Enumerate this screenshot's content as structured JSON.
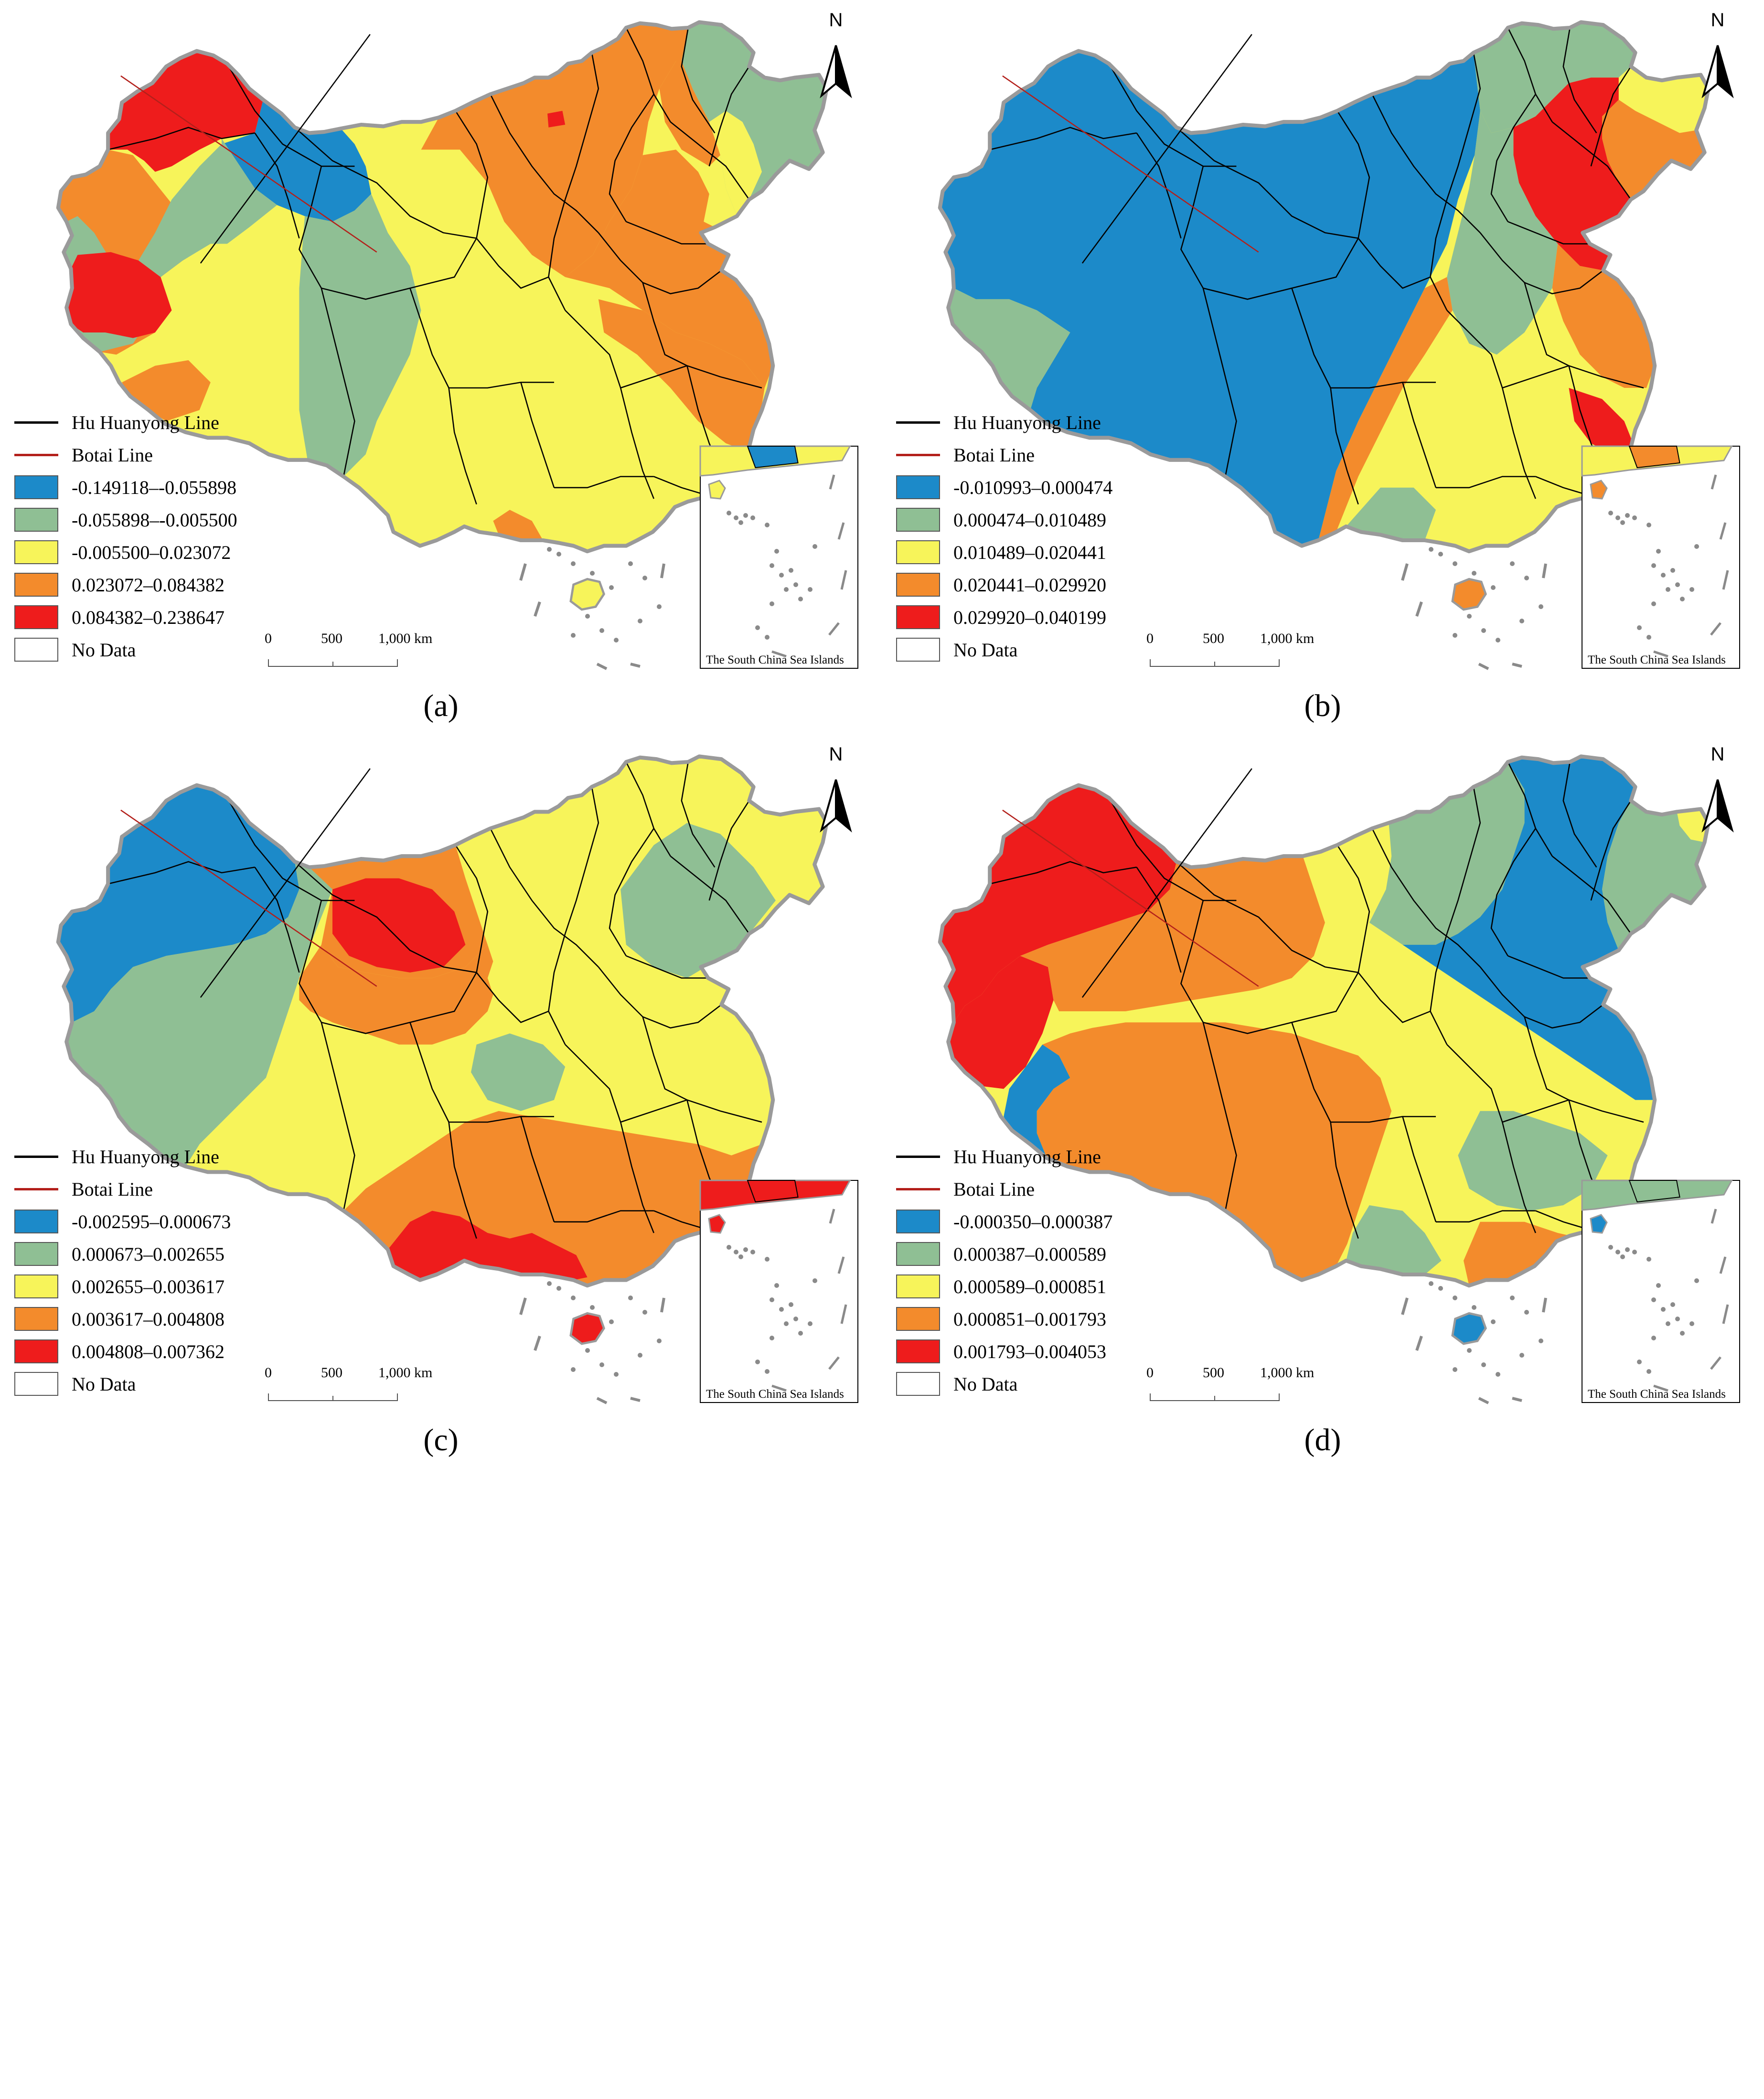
{
  "north_label": "N",
  "hu_line_label": "Hu Huanyong Line",
  "botai_line_label": "Botai Line",
  "no_data_label": "No Data",
  "inset_title": "The South China Sea Islands",
  "scale": {
    "labels": [
      "0",
      "500",
      "1,000 km"
    ]
  },
  "colors": {
    "class1": "#1c8ac9",
    "class2": "#8fbf94",
    "class3": "#f7f45a",
    "class4": "#f38b2c",
    "class5": "#ee1c1c",
    "hu_line": "#000000",
    "botai_line": "#b3201b",
    "boundary": "#9a9a9a"
  },
  "panels": [
    {
      "caption": "(a)",
      "legend": [
        "-0.149118–-0.055898",
        "-0.055898–-0.005500",
        "-0.005500–0.023072",
        "0.023072–0.084382",
        "0.084382–0.238647"
      ]
    },
    {
      "caption": "(b)",
      "legend": [
        "-0.010993–0.000474",
        "0.000474–0.010489",
        "0.010489–0.020441",
        "0.020441–0.029920",
        "0.029920–0.040199"
      ]
    },
    {
      "caption": "(c)",
      "legend": [
        "-0.002595–0.000673",
        "0.000673–0.002655",
        "0.002655–0.003617",
        "0.003617–0.004808",
        "0.004808–0.007362"
      ]
    },
    {
      "caption": "(d)",
      "legend": [
        "-0.000350–0.000387",
        "0.000387–0.000589",
        "0.000589–0.000851",
        "0.000851–0.001793",
        "0.001793–0.004053"
      ]
    }
  ]
}
